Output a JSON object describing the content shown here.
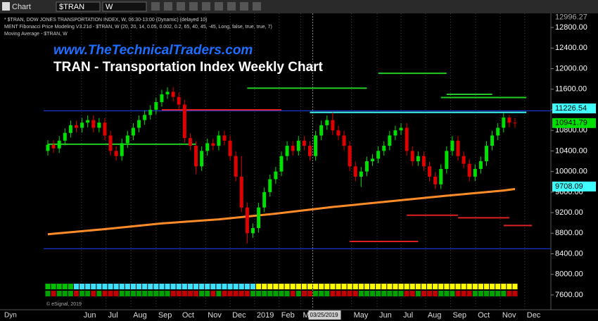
{
  "toolbar": {
    "chart": "Chart",
    "symbol": "$TRAN",
    "interval": "W"
  },
  "chart_data": {
    "type": "candlestick",
    "website": "www.TheTechnicalTraders.com",
    "title": "TRAN - Transportation Index Weekly Chart",
    "study_lines": [
      "* $TRAN, DOW JONES TRANSPORTATION INDEX, W, 06:30-13:00 (Dynamic) (delayed 10)",
      "MENT Fibonacci Price Modeling V3.21d - $TRAN, W (20, 20, 14, 0.05, 0.002, 0.2, 65, 40, 45, -45, Long, false, true, true, 7)",
      "Moving Average - $TRAN, W"
    ],
    "up_color": "#00e000",
    "down_color": "#e00000",
    "open": [
      10400,
      10520,
      10450,
      10600,
      10750,
      10900,
      10850,
      10950,
      11000,
      10850,
      10950,
      10700,
      10400,
      10300,
      10550,
      10700,
      10850,
      11000,
      11100,
      11200,
      11350,
      11500,
      11550,
      11450,
      11300,
      10650,
      10500,
      10100,
      10400,
      10550,
      10500,
      10700,
      10600,
      10300,
      9900,
      9300,
      8800,
      8900,
      9300,
      9600,
      9850,
      10000,
      10300,
      10500,
      10400,
      10600,
      10500,
      10300,
      10700,
      10900,
      11000,
      10800,
      10700,
      10500,
      10100,
      9900,
      10000,
      10200,
      10250,
      10400,
      10500,
      10700,
      10800,
      10850,
      10400,
      10200,
      10300,
      10100,
      9900,
      9750,
      10050,
      10400,
      10600,
      10300,
      10150,
      9900,
      10050,
      10200,
      10500,
      10700,
      10850,
      11050,
      10950
    ],
    "high": [
      10610,
      10610,
      10690,
      10840,
      10990,
      10990,
      11040,
      11090,
      11090,
      11040,
      11040,
      10790,
      10490,
      10640,
      10790,
      10940,
      11090,
      11190,
      11290,
      11440,
      11590,
      11640,
      11640,
      11540,
      11390,
      10740,
      10590,
      10490,
      10640,
      10640,
      10790,
      10790,
      10690,
      10390,
      10300,
      9400,
      8990,
      9390,
      9690,
      9940,
      10090,
      10390,
      10590,
      10590,
      10690,
      10690,
      10590,
      10790,
      10990,
      11090,
      11150,
      10890,
      10790,
      10590,
      10190,
      10090,
      10290,
      10340,
      10490,
      10590,
      10790,
      10890,
      10940,
      10940,
      10490,
      10390,
      10390,
      10190,
      9990,
      10140,
      10490,
      10690,
      10690,
      10390,
      10240,
      10140,
      10290,
      10590,
      10790,
      10940,
      11140,
      11100,
      11040
    ],
    "low": [
      10310,
      10360,
      10360,
      10510,
      10660,
      10760,
      10760,
      10860,
      10760,
      10760,
      10610,
      10310,
      10210,
      10210,
      10460,
      10610,
      10760,
      10910,
      11010,
      11110,
      11260,
      11410,
      11360,
      11210,
      10560,
      10410,
      9950,
      10010,
      10310,
      10410,
      10410,
      10510,
      10210,
      9810,
      9210,
      8600,
      8710,
      8810,
      9210,
      9510,
      9760,
      9910,
      10210,
      10310,
      10310,
      10410,
      10210,
      10210,
      10610,
      10810,
      10710,
      10610,
      10410,
      10010,
      9810,
      9700,
      9910,
      10110,
      10160,
      10310,
      10410,
      10610,
      10710,
      10310,
      10110,
      10110,
      10010,
      9810,
      9660,
      9660,
      9960,
      10310,
      10210,
      10060,
      9810,
      9810,
      9960,
      10110,
      10410,
      10610,
      10760,
      10860,
      10850
    ],
    "close": [
      10520,
      10450,
      10600,
      10750,
      10900,
      10850,
      10950,
      11000,
      10850,
      10950,
      10700,
      10400,
      10300,
      10550,
      10700,
      10850,
      11000,
      11100,
      11200,
      11350,
      11500,
      11550,
      11450,
      11300,
      10650,
      10500,
      10100,
      10400,
      10550,
      10500,
      10700,
      10600,
      10300,
      9900,
      9300,
      8800,
      8900,
      9300,
      9600,
      9850,
      10000,
      10300,
      10500,
      10400,
      10600,
      10500,
      10300,
      10700,
      10900,
      11000,
      10800,
      10700,
      10500,
      10100,
      9900,
      10000,
      10200,
      10250,
      10400,
      10500,
      10700,
      10800,
      10850,
      10400,
      10200,
      10300,
      10100,
      9900,
      9750,
      10050,
      10400,
      10600,
      10300,
      10150,
      9900,
      10050,
      10200,
      10500,
      10700,
      10850,
      11050,
      10950,
      10940
    ],
    "moving_average": {
      "color": "#ff8c28",
      "x": [
        0,
        10,
        20,
        30,
        40,
        50,
        60,
        70,
        80,
        82
      ],
      "values": [
        8780,
        8880,
        8990,
        9070,
        9180,
        9310,
        9420,
        9530,
        9630,
        9660
      ]
    },
    "levels": [
      {
        "value": 11180,
        "from": -1,
        "to": 89,
        "color": "#2040ff"
      },
      {
        "value": 8500,
        "from": -1,
        "to": 89,
        "color": "#2040ff"
      },
      {
        "value": 11150,
        "from": 46,
        "to": 84,
        "color": "#40ffff"
      },
      {
        "value": 11620,
        "from": 35,
        "to": 56,
        "color": "#22cc22"
      },
      {
        "value": 11910,
        "from": 58,
        "to": 70,
        "color": "#22cc22"
      },
      {
        "value": 11500,
        "from": 70,
        "to": 78,
        "color": "#22cc22"
      },
      {
        "value": 11440,
        "from": 69,
        "to": 84,
        "color": "#22cc22"
      },
      {
        "value": 11200,
        "from": 20,
        "to": 41,
        "color": "#dd2020"
      },
      {
        "value": 10530,
        "from": 0,
        "to": 26,
        "color": "#22cc22"
      },
      {
        "value": 9150,
        "from": 63,
        "to": 72,
        "color": "#dd2020"
      },
      {
        "value": 9100,
        "from": 72,
        "to": 81,
        "color": "#dd2020"
      },
      {
        "value": 8950,
        "from": 80,
        "to": 85,
        "color": "#dd2020"
      },
      {
        "value": 8640,
        "from": 53,
        "to": 65,
        "color": "#dd2020"
      }
    ],
    "price_labels": [
      {
        "value": 12996.27,
        "color": "#888888"
      },
      {
        "value": 11226.54,
        "color": "#40ffff"
      },
      {
        "value": 10941.79,
        "color": "#00e000"
      },
      {
        "value": 9708.09,
        "color": "#40ffff"
      }
    ],
    "ylim": [
      7312,
      13075
    ],
    "yticks": [
      {
        "value": 7600,
        "label": "7600.00"
      },
      {
        "value": 8000,
        "label": "8000.00"
      },
      {
        "value": 8400,
        "label": "8400.00"
      },
      {
        "value": 8800,
        "label": "8800.00"
      },
      {
        "value": 9200,
        "label": "9200.00"
      },
      {
        "value": 9600,
        "label": "9600.00"
      },
      {
        "value": 10000,
        "label": "10000.00"
      },
      {
        "value": 10400,
        "label": "10400.00"
      },
      {
        "value": 10800,
        "label": "10800.00"
      },
      {
        "value": 11200,
        "label": "11200.00"
      },
      {
        "value": 11600,
        "label": "11600.00"
      },
      {
        "value": 12000,
        "label": "12000.00"
      },
      {
        "value": 12400,
        "label": "12400.00"
      },
      {
        "value": 12800,
        "label": "12800.00"
      }
    ],
    "xlim": [
      -0.74,
      88.3
    ],
    "xticks": [
      {
        "value": 5.9,
        "label": "Jun"
      },
      {
        "value": 10.2,
        "label": "Jul"
      },
      {
        "value": 14.6,
        "label": "Aug"
      },
      {
        "value": 19.0,
        "label": "Sep"
      },
      {
        "value": 23.2,
        "label": "Oct"
      },
      {
        "value": 27.7,
        "label": "Nov"
      },
      {
        "value": 32.0,
        "label": "Dec"
      },
      {
        "value": 36.3,
        "label": "2019"
      },
      {
        "value": 40.6,
        "label": "Feb"
      },
      {
        "value": 44.4,
        "label": "Mar"
      },
      {
        "value": 53.3,
        "label": "May"
      },
      {
        "value": 57.8,
        "label": "Jun"
      },
      {
        "value": 62.0,
        "label": "Jul"
      },
      {
        "value": 66.3,
        "label": "Aug"
      },
      {
        "value": 70.7,
        "label": "Sep"
      },
      {
        "value": 75.1,
        "label": "Oct"
      },
      {
        "value": 79.4,
        "label": "Nov"
      },
      {
        "value": 83.7,
        "label": "Dec"
      }
    ],
    "cursor": {
      "value": 46.5,
      "label": "03/25/2019"
    },
    "footer": {
      "mode": "Dyn",
      "copyright": "© eSignal, 2019"
    }
  }
}
